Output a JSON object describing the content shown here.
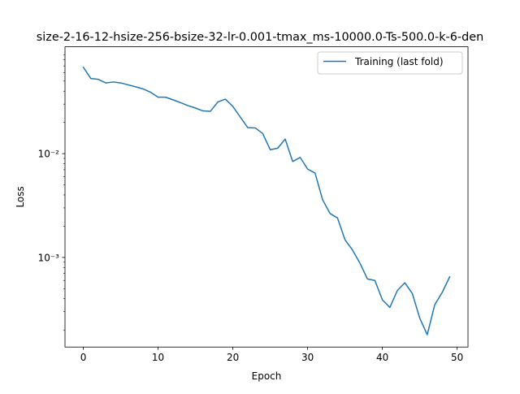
{
  "chart_data": {
    "type": "line",
    "title": "size-2-16-12-hsize-256-bsize-32-lr-0.001-tmax_ms-10000.0-Ts-500.0-k-6-den",
    "xlabel": "Epoch",
    "ylabel": "Loss",
    "yscale": "log",
    "xlim": [
      -2.45,
      51.45
    ],
    "ylim": [
      0.000137,
      0.107
    ],
    "x_ticks": [
      0,
      10,
      20,
      30,
      40,
      50
    ],
    "x_tick_labels": [
      "0",
      "10",
      "20",
      "30",
      "40",
      "50"
    ],
    "y_ticks": [
      0.001,
      0.01
    ],
    "y_tick_labels": [
      "10⁻³",
      "10⁻²"
    ],
    "grid": false,
    "legend_position": "top-right",
    "series": [
      {
        "name": "Training (last fold)",
        "color": "#1f77b4",
        "x": [
          0,
          1,
          2,
          3,
          4,
          5,
          6,
          7,
          8,
          9,
          10,
          11,
          12,
          13,
          14,
          15,
          16,
          17,
          18,
          19,
          20,
          21,
          22,
          23,
          24,
          25,
          26,
          27,
          28,
          29,
          30,
          31,
          32,
          33,
          34,
          35,
          36,
          37,
          38,
          39,
          40,
          41,
          42,
          43,
          44,
          45,
          46,
          47,
          48,
          49
        ],
        "y": [
          0.068,
          0.053,
          0.052,
          0.048,
          0.049,
          0.048,
          0.046,
          0.044,
          0.042,
          0.039,
          0.035,
          0.035,
          0.033,
          0.031,
          0.029,
          0.0275,
          0.0258,
          0.0256,
          0.0315,
          0.0335,
          0.0285,
          0.0225,
          0.0178,
          0.0177,
          0.0156,
          0.0109,
          0.0113,
          0.0138,
          0.0084,
          0.0092,
          0.0071,
          0.0065,
          0.0036,
          0.00265,
          0.0024,
          0.00148,
          0.00118,
          0.00088,
          0.00062,
          0.0006,
          0.00039,
          0.00033,
          0.00048,
          0.00057,
          0.00045,
          0.00026,
          0.00018,
          0.00035,
          0.00046,
          0.00065
        ]
      }
    ]
  }
}
